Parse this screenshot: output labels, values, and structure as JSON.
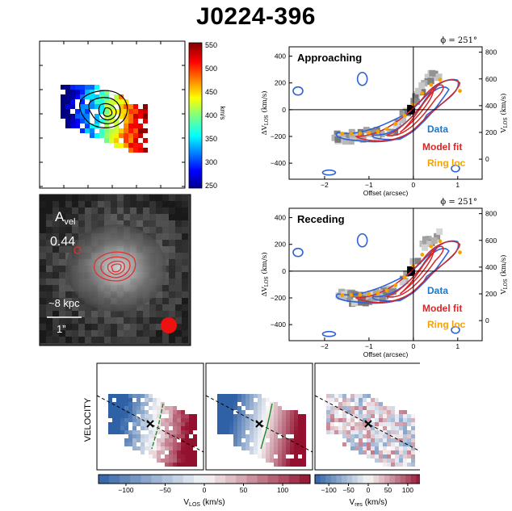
{
  "title": "J0224-396",
  "colorbar": {
    "unit": "km/s",
    "ticks": [
      "550",
      "500",
      "450",
      "400",
      "350",
      "300",
      "250"
    ]
  },
  "flux_panel": {
    "label_main": "A",
    "label_sub": "vel",
    "asym_value": "0.44",
    "scale_kpc": "~8 kpc",
    "scale_arcsec": "1”"
  },
  "pv_panels": [
    {
      "name": "approaching",
      "label": "Approaching",
      "phi": "ϕ = 251°",
      "xlabel": "Offset (arcsec)",
      "ylabel_left_main": "ΔV",
      "ylabel_left_sub": "LOS",
      "ylabel_left_unit": " (km/s)",
      "ylabel_right_main": "V",
      "ylabel_right_sub": "LOS",
      "ylabel_right_unit": " (km/s)",
      "yticks_left": [
        "400",
        "200",
        "0",
        "−200",
        "−400"
      ],
      "yticks_right": [
        "800",
        "600",
        "400",
        "200",
        "0"
      ],
      "xticks": [
        "−2",
        "−1",
        "0",
        "1"
      ]
    },
    {
      "name": "receding",
      "label": "Receding",
      "phi": "ϕ = 251°",
      "xlabel": "Offset (arcsec)",
      "ylabel_left_main": "ΔV",
      "ylabel_left_sub": "LOS",
      "ylabel_left_unit": " (km/s)",
      "ylabel_right_main": "V",
      "ylabel_right_sub": "LOS",
      "ylabel_right_unit": " (km/s)",
      "yticks_left": [
        "400",
        "200",
        "0",
        "−200",
        "−400"
      ],
      "yticks_right": [
        "800",
        "600",
        "400",
        "200",
        "0"
      ],
      "xticks": [
        "−2",
        "−1",
        "0",
        "1"
      ]
    }
  ],
  "legend": {
    "data": "Data",
    "data_color": "#1f77c4",
    "model": "Model fit",
    "model_color": "#d62728",
    "ring": "Ring loc",
    "ring_color": "#f5a300"
  },
  "velocity_row": {
    "ylabel": "VELOCITY",
    "cbar1_ticks": [
      "−100",
      "−50",
      "0",
      "50",
      "100"
    ],
    "cbar1_label_main": "V",
    "cbar1_label_sub": "LOS",
    "cbar1_label_unit": " (km/s)",
    "cbar2_ticks": [
      "−100",
      "−50",
      "0",
      "50",
      "100"
    ],
    "cbar2_label_main": "V",
    "cbar2_label_sub": "res",
    "cbar2_label_unit": " (km/s)"
  }
}
